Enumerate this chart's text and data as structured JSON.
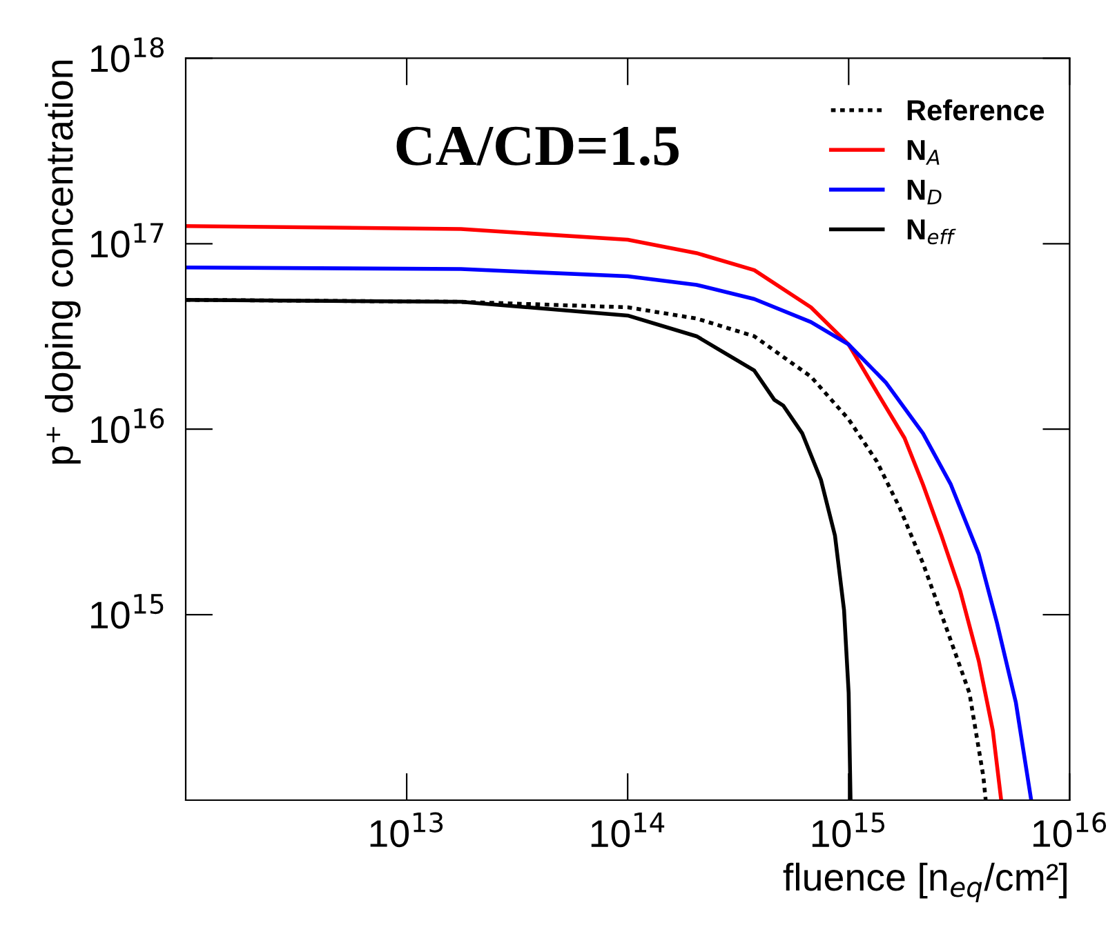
{
  "chart_data": {
    "type": "line",
    "xlabel": "fluence [n$_{eq}$/cm²]",
    "ylabel": "p⁺ doping concentration",
    "annotations": [
      "CA/CD=1.5"
    ],
    "log": "xy",
    "xlim": [
      1000000000000.0,
      1e+16
    ],
    "ylim": [
      100000000000000.0,
      1e+18
    ],
    "xticks": [
      {
        "value": 10000000000000.0,
        "label": "10$^{13}$"
      },
      {
        "value": 100000000000000.0,
        "label": "10$^{14}$"
      },
      {
        "value": 1000000000000000.0,
        "label": "10$^{15}$"
      },
      {
        "value": 1e+16,
        "label": "10$^{16}$"
      }
    ],
    "yticks": [
      {
        "value": 1000000000000000.0,
        "label": "10$^{15}$"
      },
      {
        "value": 1e+16,
        "label": "10$^{16}$"
      },
      {
        "value": 1e+17,
        "label": "10$^{17}$"
      },
      {
        "value": 1e+18,
        "label": "10$^{18}$"
      }
    ],
    "legend": "top right",
    "series": [
      {
        "name": "Reference",
        "color": "#000000",
        "line_style": "dotted",
        "x": [
          1000000000000.0,
          17600000000000.0,
          100000000000000.0,
          205000000000000.0,
          374000000000000.0,
          675000000000000.0,
          1000000000000000.0,
          1340000000000000.0,
          1700000000000000.0,
          2170000000000000.0,
          2770000000000000.0,
          3520000000000000.0,
          4070000000000000.0,
          4170000000000000.0
        ],
        "values": [
          4.98e+16,
          4.86e+16,
          4.54e+16,
          3.95e+16,
          3.17e+16,
          1.92e+16,
          1.13e+16,
          6710000000000000.0,
          3780000000000000.0,
          1890000000000000.0,
          845000000000000.0,
          378000000000000.0,
          134000000000000.0,
          100000000000000.0
        ]
      },
      {
        "name": "N$_{A}$",
        "color": "#ff0000",
        "x": [
          1000000000000.0,
          17600000000000.0,
          100000000000000.0,
          205000000000000.0,
          374000000000000.0,
          675000000000000.0,
          1000000000000000.0,
          1340000000000000.0,
          1790000000000000.0,
          2170000000000000.0,
          2630000000000000.0,
          3200000000000000.0,
          3880000000000000.0,
          4490000000000000.0,
          4900000000000000.0
        ],
        "values": [
          1.245e+17,
          1.2e+17,
          1.05e+17,
          8.9e+16,
          7.2e+16,
          4.54e+16,
          2.86e+16,
          1.59e+16,
          8960000000000000.0,
          5030000000000000.0,
          2670000000000000.0,
          1340000000000000.0,
          563000000000000.0,
          238000000000000.0,
          100000000000000.0
        ]
      },
      {
        "name": "N$_{D}$",
        "color": "#0000ff",
        "x": [
          1000000000000.0,
          17600000000000.0,
          100000000000000.0,
          205000000000000.0,
          374000000000000.0,
          675000000000000.0,
          1000000000000000.0,
          1470000000000000.0,
          2170000000000000.0,
          2900000000000000.0,
          3880000000000000.0,
          4700000000000000.0,
          5710000000000000.0,
          6700000000000000.0
        ],
        "values": [
          7.45e+16,
          7.3e+16,
          6.68e+16,
          6e+16,
          5.03e+16,
          3.78e+16,
          2.86e+16,
          1.79e+16,
          9480000000000000.0,
          5030000000000000.0,
          2120000000000000.0,
          895000000000000.0,
          336000000000000.0,
          100000000000000.0
        ]
      },
      {
        "name": "N$_{eff}$",
        "color": "#000000",
        "x": [
          1000000000000.0,
          17600000000000.0,
          100000000000000.0,
          205000000000000.0,
          374000000000000.0,
          461000000000000.0,
          506000000000000.0,
          617000000000000.0,
          749000000000000.0,
          867000000000000.0,
          953000000000000.0,
          1000000000000000.0,
          1020000000000000.0
        ],
        "values": [
          4.98e+16,
          4.86e+16,
          4.1e+16,
          3.17e+16,
          2.07e+16,
          1.44e+16,
          1.34e+16,
          9480000000000000.0,
          5340000000000000.0,
          2670000000000000.0,
          1060000000000000.0,
          378000000000000.0,
          100000000000000.0
        ]
      }
    ]
  }
}
